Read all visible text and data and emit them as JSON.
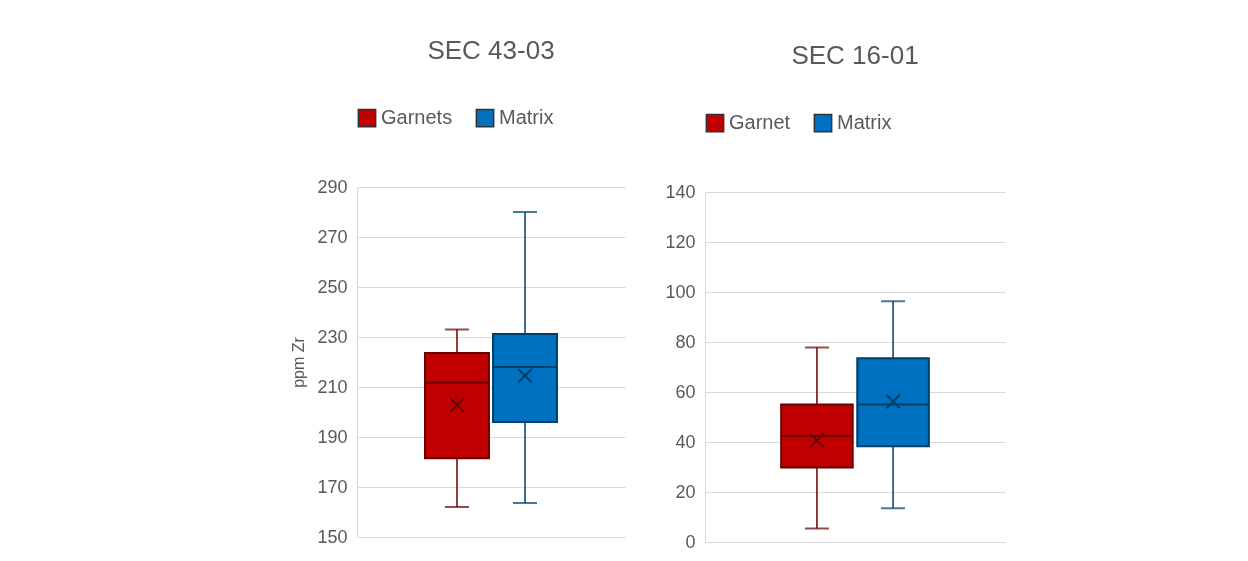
{
  "chart_data": [
    {
      "type": "box",
      "title": "SEC 43-03",
      "ylabel": "ppm Zr",
      "categories": [
        null
      ],
      "ylim": [
        150,
        290
      ],
      "yticks": [
        150,
        170,
        190,
        210,
        230,
        250,
        270,
        290
      ],
      "grid": "y",
      "legend": "top",
      "series": [
        {
          "name": "Garnets",
          "color": "#c00000",
          "boxes": [
            {
              "low": 162,
              "q1": 181.5,
              "median": 211.7,
              "q3": 223.6,
              "high": 233,
              "mean": 202.8
            }
          ]
        },
        {
          "name": "Matrix",
          "color": "#0070c0",
          "boxes": [
            {
              "low": 163.6,
              "q1": 196,
              "median": 218,
              "q3": 231.2,
              "high": 280,
              "mean": 214.5
            }
          ]
        }
      ]
    },
    {
      "type": "box",
      "title": "SEC 16-01",
      "categories": [
        null
      ],
      "ylim": [
        0,
        140
      ],
      "yticks": [
        0,
        20,
        40,
        60,
        80,
        100,
        120,
        140
      ],
      "grid": "y",
      "legend": "top",
      "series": [
        {
          "name": "Garnet",
          "color": "#c00000",
          "boxes": [
            {
              "low": 5.4,
              "q1": 29.8,
              "median": 42.4,
              "q3": 55,
              "high": 77.8,
              "mean": 40.7
            }
          ]
        },
        {
          "name": "Matrix",
          "color": "#0070c0",
          "boxes": [
            {
              "low": 13.5,
              "q1": 38.3,
              "median": 55,
              "q3": 73.5,
              "high": 96.3,
              "mean": 56.2
            }
          ]
        }
      ]
    }
  ]
}
